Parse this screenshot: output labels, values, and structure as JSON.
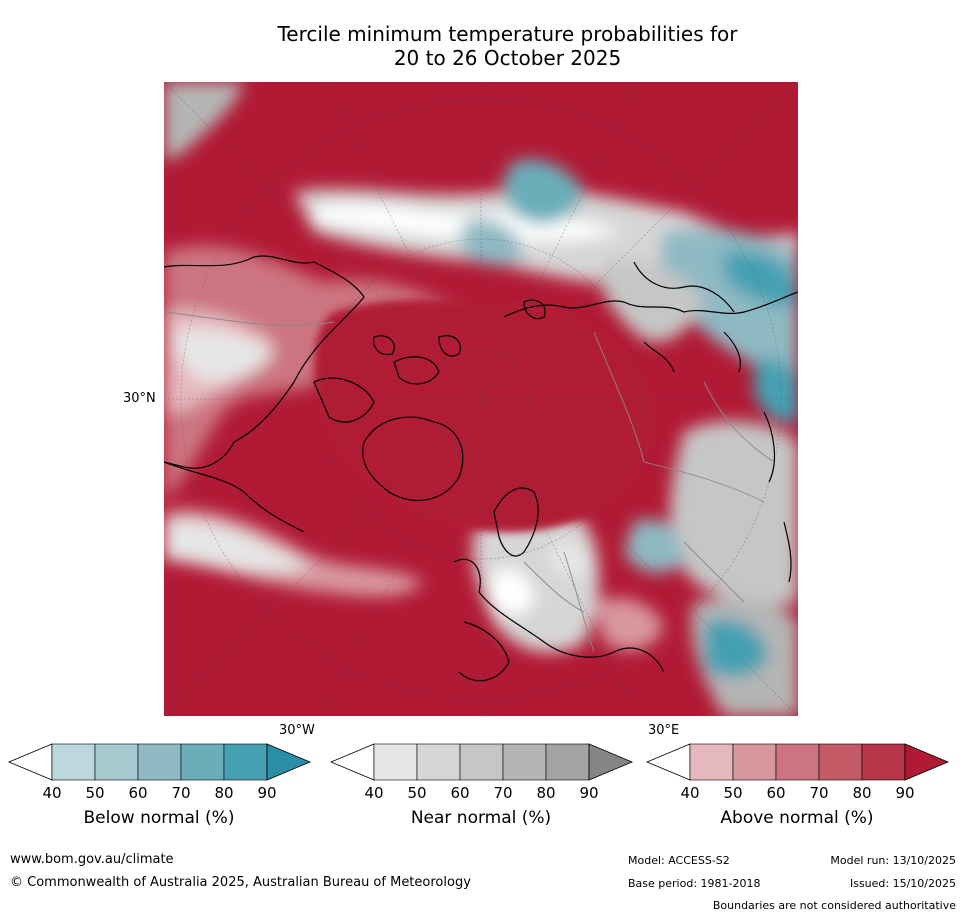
{
  "title": {
    "line1": "Tercile minimum temperature probabilities for",
    "line2": "20 to 26 October 2025"
  },
  "map": {
    "lat_label": "30°N",
    "lon_labels": {
      "west": "30°W",
      "east": "30°E"
    }
  },
  "colorbars": {
    "ticks": [
      "40",
      "50",
      "60",
      "70",
      "80",
      "90"
    ],
    "below": {
      "label": "Below normal (%)",
      "colors": [
        "#ffffff",
        "#bcd8de",
        "#a6c9cf",
        "#8fb9c3",
        "#6aaeb9",
        "#45a0b2",
        "#2a8fa6"
      ]
    },
    "near": {
      "label": "Near normal (%)",
      "colors": [
        "#ffffff",
        "#e6e6e6",
        "#d6d6d6",
        "#c6c6c6",
        "#b5b5b5",
        "#a3a3a3",
        "#858585"
      ]
    },
    "above": {
      "label": "Above normal (%)",
      "colors": [
        "#ffffff",
        "#e4b8be",
        "#d8979f",
        "#cc7580",
        "#c45a66",
        "#b73548",
        "#b11a35"
      ]
    }
  },
  "footer": {
    "url": "www.bom.gov.au/climate",
    "copyright": "© Commonwealth of Australia 2025, Australian Bureau of Meteorology",
    "model": "Model: ACCESS-S2",
    "base_period": "Base period: 1981-2018",
    "model_run": "Model run: 13/10/2025",
    "issued": "Issued: 15/10/2025",
    "disclaimer": "Boundaries are not considered authoritative"
  }
}
